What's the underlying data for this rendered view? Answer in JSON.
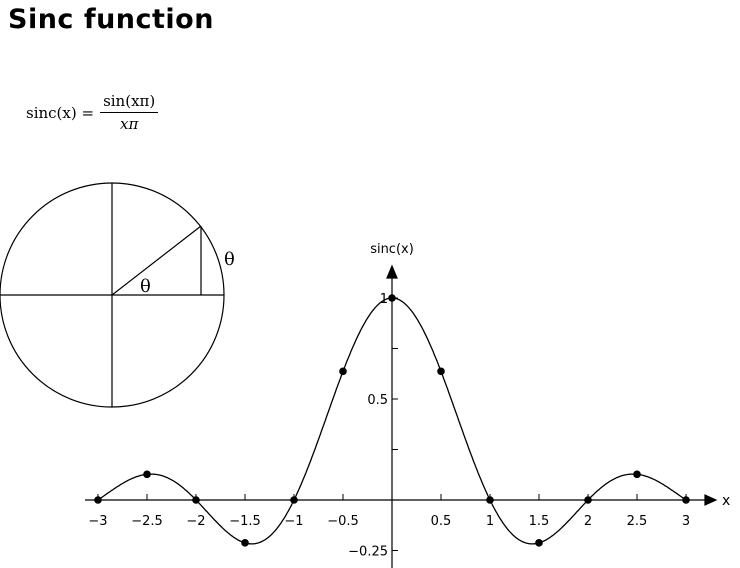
{
  "title": "Sinc function",
  "formula": {
    "lhs": "sinc(x) =",
    "numerator": "sin(xπ)",
    "denominator": "xπ"
  },
  "circle_diagram": {
    "angle_label": "θ",
    "arc_label": "θ"
  },
  "chart_data": {
    "type": "line",
    "function": "sinc(x) = sin(xπ)/(xπ)",
    "xlabel": "x",
    "ylabel": "sinc(x)",
    "xlim": [
      -3,
      3
    ],
    "ylim": [
      -0.25,
      1
    ],
    "x_ticks": [
      "-3",
      "-2.5",
      "-2",
      "-1.5",
      "-1",
      "-0.5",
      "0.5",
      "1",
      "1.5",
      "2",
      "2.5",
      "3"
    ],
    "y_ticks": [
      "1",
      "0.5",
      "-0.25"
    ],
    "points": {
      "x": [
        -3,
        -2.5,
        -2,
        -1.5,
        -1,
        -0.5,
        0,
        0.5,
        1,
        1.5,
        2,
        2.5,
        3
      ],
      "y": [
        0,
        0.127,
        0,
        -0.212,
        0,
        0.637,
        1,
        0.637,
        0,
        -0.212,
        0,
        0.127,
        0
      ]
    },
    "grid": false
  }
}
